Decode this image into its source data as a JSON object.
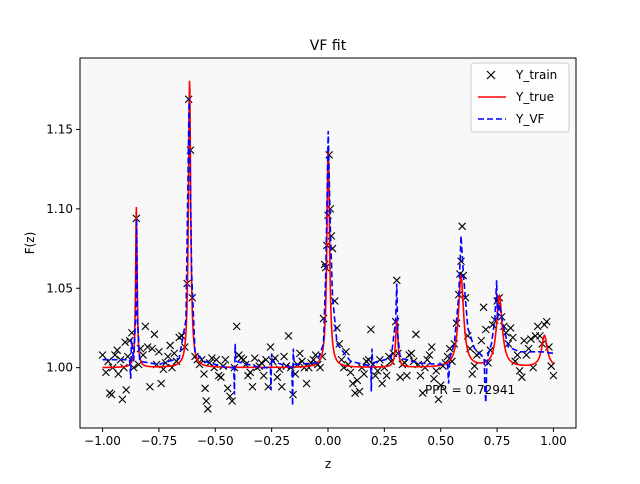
{
  "chart_data": {
    "type": "line",
    "title": "VF fit",
    "xlabel": "z",
    "ylabel": "F(z)",
    "xlim": [
      -1.1,
      1.1
    ],
    "ylim": [
      0.962,
      1.195
    ],
    "xticks": [
      -1.0,
      -0.75,
      -0.5,
      -0.25,
      0.0,
      0.25,
      0.5,
      0.75,
      1.0
    ],
    "xtick_labels": [
      "−1.00",
      "−0.75",
      "−0.50",
      "−0.25",
      "0.00",
      "0.25",
      "0.50",
      "0.75",
      "1.00"
    ],
    "yticks": [
      1.0,
      1.05,
      1.1,
      1.15
    ],
    "ytick_labels": [
      "1.00",
      "1.05",
      "1.10",
      "1.15"
    ],
    "grid": false,
    "legend_position": "top-right",
    "plot_background": "#f8f8f8",
    "annotation": "PPR = 0.72941",
    "series": [
      {
        "name": "Y_train",
        "style": "markers-x",
        "color": "#000000",
        "points": [
          [
            -1.0,
            1.008
          ],
          [
            -0.985,
            0.997
          ],
          [
            -0.975,
            1.004
          ],
          [
            -0.968,
            0.984
          ],
          [
            -0.96,
            0.983
          ],
          [
            -0.955,
            1.0
          ],
          [
            -0.945,
            1.008
          ],
          [
            -0.935,
            1.011
          ],
          [
            -0.93,
            0.996
          ],
          [
            -0.92,
            1.005
          ],
          [
            -0.912,
            0.98
          ],
          [
            -0.905,
            1.0
          ],
          [
            -0.9,
            1.016
          ],
          [
            -0.895,
            0.986
          ],
          [
            -0.888,
            1.007
          ],
          [
            -0.88,
            1.017
          ],
          [
            -0.87,
            1.022
          ],
          [
            -0.862,
            1.0
          ],
          [
            -0.85,
            1.094
          ],
          [
            -0.84,
            1.002
          ],
          [
            -0.832,
            1.012
          ],
          [
            -0.82,
            1.008
          ],
          [
            -0.81,
            1.026
          ],
          [
            -0.8,
            1.013
          ],
          [
            -0.79,
            0.988
          ],
          [
            -0.78,
            1.012
          ],
          [
            -0.77,
            1.021
          ],
          [
            -0.76,
            1.002
          ],
          [
            -0.75,
            1.01
          ],
          [
            -0.74,
            0.99
          ],
          [
            -0.73,
            0.999
          ],
          [
            -0.72,
            1.003
          ],
          [
            -0.71,
            1.007
          ],
          [
            -0.7,
            1.014
          ],
          [
            -0.692,
            1.0
          ],
          [
            -0.682,
            1.009
          ],
          [
            -0.672,
            1.004
          ],
          [
            -0.66,
            1.019
          ],
          [
            -0.648,
            1.02
          ],
          [
            -0.635,
            1.013
          ],
          [
            -0.625,
            1.053
          ],
          [
            -0.618,
            1.169
          ],
          [
            -0.61,
            1.137
          ],
          [
            -0.602,
            1.044
          ],
          [
            -0.59,
            1.007
          ],
          [
            -0.58,
            1.005
          ],
          [
            -0.57,
            1.002
          ],
          [
            -0.56,
            1.005
          ],
          [
            -0.55,
            0.996
          ],
          [
            -0.545,
            0.987
          ],
          [
            -0.54,
            0.979
          ],
          [
            -0.533,
            0.974
          ],
          [
            -0.525,
            1.003
          ],
          [
            -0.515,
            1.006
          ],
          [
            -0.505,
            1.0
          ],
          [
            -0.495,
            1.005
          ],
          [
            -0.485,
            0.995
          ],
          [
            -0.475,
            0.994
          ],
          [
            -0.465,
            1.001
          ],
          [
            -0.455,
            1.005
          ],
          [
            -0.445,
            0.987
          ],
          [
            -0.435,
            0.982
          ],
          [
            -0.425,
            0.979
          ],
          [
            -0.415,
            1.0
          ],
          [
            -0.405,
            1.026
          ],
          [
            -0.395,
            1.008
          ],
          [
            -0.385,
            1.006
          ],
          [
            -0.375,
            1.005
          ],
          [
            -0.365,
            1.002
          ],
          [
            -0.355,
            0.995
          ],
          [
            -0.345,
            0.997
          ],
          [
            -0.335,
            0.988
          ],
          [
            -0.325,
            1.006
          ],
          [
            -0.315,
            1.0
          ],
          [
            -0.305,
            1.001
          ],
          [
            -0.295,
            1.003
          ],
          [
            -0.285,
            0.995
          ],
          [
            -0.275,
            1.005
          ],
          [
            -0.265,
            0.988
          ],
          [
            -0.255,
            1.013
          ],
          [
            -0.245,
            1.004
          ],
          [
            -0.235,
            1.006
          ],
          [
            -0.225,
            0.994
          ],
          [
            -0.215,
            0.999
          ],
          [
            -0.205,
            0.988
          ],
          [
            -0.195,
            1.007
          ],
          [
            -0.185,
            1.001
          ],
          [
            -0.175,
            1.02
          ],
          [
            -0.165,
            1.0
          ],
          [
            -0.155,
            0.983
          ],
          [
            -0.145,
            0.996
          ],
          [
            -0.135,
            1.002
          ],
          [
            -0.125,
            1.009
          ],
          [
            -0.115,
            1.004
          ],
          [
            -0.105,
            1.0
          ],
          [
            -0.095,
            0.99
          ],
          [
            -0.085,
            1.0
          ],
          [
            -0.075,
            1.003
          ],
          [
            -0.065,
            1.005
          ],
          [
            -0.055,
            1.008
          ],
          [
            -0.045,
            1.002
          ],
          [
            -0.035,
            1.0
          ],
          [
            -0.025,
            1.007
          ],
          [
            -0.02,
            1.031
          ],
          [
            -0.015,
            1.065
          ],
          [
            -0.01,
            1.063
          ],
          [
            -0.005,
            1.077
          ],
          [
            0.0,
            1.096
          ],
          [
            0.005,
            1.134
          ],
          [
            0.01,
            1.1
          ],
          [
            0.015,
            1.083
          ],
          [
            0.02,
            1.075
          ],
          [
            0.03,
            1.042
          ],
          [
            0.04,
            1.025
          ],
          [
            0.05,
            1.015
          ],
          [
            0.06,
            1.005
          ],
          [
            0.07,
            1.0
          ],
          [
            0.08,
            1.01
          ],
          [
            0.09,
            1.002
          ],
          [
            0.1,
            0.997
          ],
          [
            0.11,
            0.99
          ],
          [
            0.12,
            0.984
          ],
          [
            0.13,
            0.992
          ],
          [
            0.14,
            0.985
          ],
          [
            0.15,
            1.0
          ],
          [
            0.16,
            0.996
          ],
          [
            0.17,
            1.004
          ],
          [
            0.18,
            1.005
          ],
          [
            0.19,
            1.024
          ],
          [
            0.2,
            1.002
          ],
          [
            0.21,
            0.995
          ],
          [
            0.22,
            0.998
          ],
          [
            0.23,
            1.005
          ],
          [
            0.24,
            0.99
          ],
          [
            0.25,
            1.0
          ],
          [
            0.26,
            0.995
          ],
          [
            0.27,
            1.007
          ],
          [
            0.28,
            1.004
          ],
          [
            0.29,
            1.009
          ],
          [
            0.3,
            1.029
          ],
          [
            0.305,
            1.055
          ],
          [
            0.31,
            1.009
          ],
          [
            0.32,
            0.994
          ],
          [
            0.33,
            1.002
          ],
          [
            0.34,
            1.003
          ],
          [
            0.35,
            0.995
          ],
          [
            0.36,
            1.008
          ],
          [
            0.37,
            1.009
          ],
          [
            0.38,
            1.004
          ],
          [
            0.39,
            1.021
          ],
          [
            0.4,
            1.002
          ],
          [
            0.41,
            0.995
          ],
          [
            0.42,
            0.984
          ],
          [
            0.43,
            1.0
          ],
          [
            0.44,
            1.005
          ],
          [
            0.45,
            1.008
          ],
          [
            0.46,
            1.013
          ],
          [
            0.47,
            0.993
          ],
          [
            0.48,
            0.998
          ],
          [
            0.49,
            0.98
          ],
          [
            0.5,
            0.989
          ],
          [
            0.51,
            1.001
          ],
          [
            0.52,
            1.003
          ],
          [
            0.53,
            1.007
          ],
          [
            0.54,
            1.012
          ],
          [
            0.55,
            1.004
          ],
          [
            0.56,
            1.015
          ],
          [
            0.57,
            1.028
          ],
          [
            0.58,
            1.046
          ],
          [
            0.585,
            1.059
          ],
          [
            0.59,
            1.067
          ],
          [
            0.595,
            1.089
          ],
          [
            0.6,
            1.058
          ],
          [
            0.61,
            1.044
          ],
          [
            0.62,
            1.02
          ],
          [
            0.63,
            1.012
          ],
          [
            0.64,
            0.996
          ],
          [
            0.65,
            1.001
          ],
          [
            0.66,
            1.008
          ],
          [
            0.67,
            1.009
          ],
          [
            0.68,
            1.017
          ],
          [
            0.69,
            1.038
          ],
          [
            0.7,
            1.024
          ],
          [
            0.71,
            1.003
          ],
          [
            0.72,
            1.011
          ],
          [
            0.73,
            1.027
          ],
          [
            0.74,
            1.03
          ],
          [
            0.75,
            1.042
          ],
          [
            0.76,
            1.044
          ],
          [
            0.77,
            1.032
          ],
          [
            0.78,
            1.026
          ],
          [
            0.79,
            1.022
          ],
          [
            0.8,
            1.015
          ],
          [
            0.81,
            1.025
          ],
          [
            0.82,
            1.019
          ],
          [
            0.83,
            1.004
          ],
          [
            0.84,
            1.008
          ],
          [
            0.85,
            0.998
          ],
          [
            0.86,
            0.994
          ],
          [
            0.87,
            1.017
          ],
          [
            0.88,
            1.008
          ],
          [
            0.89,
            1.012
          ],
          [
            0.9,
            1.018
          ],
          [
            0.91,
            1.0
          ],
          [
            0.92,
            1.02
          ],
          [
            0.93,
            1.026
          ],
          [
            0.94,
            1.02
          ],
          [
            0.95,
            1.015
          ],
          [
            0.96,
            1.027
          ],
          [
            0.97,
            1.029
          ],
          [
            0.98,
            1.013
          ],
          [
            0.99,
            1.001
          ],
          [
            1.0,
            0.995
          ]
        ]
      },
      {
        "name": "Y_true",
        "style": "solid",
        "color": "#ff0000",
        "baseline": 1.0,
        "peaks": [
          {
            "x0": -0.85,
            "height": 0.101,
            "width": 0.004
          },
          {
            "x0": -0.614,
            "height": 0.181,
            "width": 0.006
          },
          {
            "x0": 0.001,
            "height": 0.14,
            "width": 0.007
          },
          {
            "x0": 0.305,
            "height": 0.03,
            "width": 0.006
          },
          {
            "x0": 0.59,
            "height": 0.057,
            "width": 0.014
          },
          {
            "x0": 0.76,
            "height": 0.045,
            "width": 0.015
          },
          {
            "x0": 0.96,
            "height": 0.02,
            "width": 0.015
          }
        ]
      },
      {
        "name": "Y_VF",
        "style": "dashed",
        "color": "#0000ff",
        "points": [
          [
            -1.0,
            1.005
          ],
          [
            -0.9,
            1.005
          ],
          [
            -0.88,
            1.005
          ],
          [
            -0.875,
            0.993
          ],
          [
            -0.872,
            1.018
          ],
          [
            -0.862,
            1.004
          ],
          [
            -0.852,
            1.035
          ],
          [
            -0.849,
            1.094
          ],
          [
            -0.845,
            1.03
          ],
          [
            -0.835,
            1.004
          ],
          [
            -0.75,
            1.002
          ],
          [
            -0.66,
            1.006
          ],
          [
            -0.63,
            1.03
          ],
          [
            -0.616,
            1.17
          ],
          [
            -0.605,
            1.06
          ],
          [
            -0.59,
            1.01
          ],
          [
            -0.55,
            1.004
          ],
          [
            -0.45,
            1.0
          ],
          [
            -0.418,
            1.0
          ],
          [
            -0.415,
            0.983
          ],
          [
            -0.412,
            1.015
          ],
          [
            -0.408,
            1.004
          ],
          [
            -0.3,
            1.0
          ],
          [
            -0.255,
            1.0
          ],
          [
            -0.253,
            0.986
          ],
          [
            -0.25,
            1.009
          ],
          [
            -0.247,
            1.004
          ],
          [
            -0.16,
            1.0
          ],
          [
            -0.157,
            0.976
          ],
          [
            -0.154,
            1.012
          ],
          [
            -0.15,
            1.002
          ],
          [
            -0.05,
            1.003
          ],
          [
            -0.02,
            1.015
          ],
          [
            -0.01,
            1.06
          ],
          [
            0.001,
            1.149
          ],
          [
            0.01,
            1.09
          ],
          [
            0.02,
            1.045
          ],
          [
            0.04,
            1.015
          ],
          [
            0.1,
            1.004
          ],
          [
            0.19,
            1.001
          ],
          [
            0.192,
            0.985
          ],
          [
            0.195,
            1.012
          ],
          [
            0.198,
            1.003
          ],
          [
            0.28,
            1.006
          ],
          [
            0.3,
            1.03
          ],
          [
            0.305,
            1.053
          ],
          [
            0.31,
            1.02
          ],
          [
            0.32,
            1.006
          ],
          [
            0.4,
            1.003
          ],
          [
            0.5,
            1.002
          ],
          [
            0.53,
            1.002
          ],
          [
            0.535,
            0.99
          ],
          [
            0.54,
            1.006
          ],
          [
            0.56,
            1.015
          ],
          [
            0.58,
            1.045
          ],
          [
            0.59,
            1.083
          ],
          [
            0.6,
            1.06
          ],
          [
            0.62,
            1.025
          ],
          [
            0.65,
            1.012
          ],
          [
            0.68,
            1.008
          ],
          [
            0.693,
            1.005
          ],
          [
            0.696,
            0.986
          ],
          [
            0.7,
            0.978
          ],
          [
            0.704,
            1.0
          ],
          [
            0.71,
            1.008
          ],
          [
            0.725,
            1.015
          ],
          [
            0.74,
            1.03
          ],
          [
            0.748,
            1.055
          ],
          [
            0.752,
            1.03
          ],
          [
            0.76,
            1.04
          ],
          [
            0.78,
            1.025
          ],
          [
            0.8,
            1.013
          ],
          [
            0.85,
            1.01
          ],
          [
            0.9,
            1.01
          ],
          [
            0.95,
            1.01
          ],
          [
            1.0,
            1.009
          ]
        ]
      }
    ]
  }
}
